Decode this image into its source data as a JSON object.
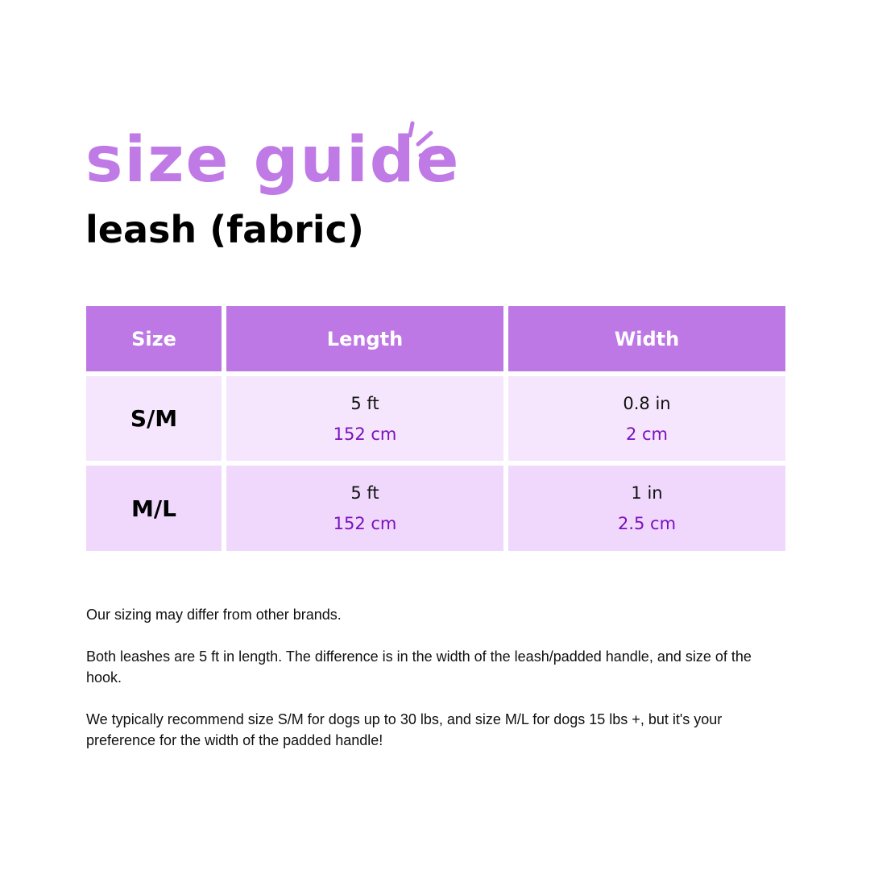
{
  "title": "size guide",
  "subtitle": "leash (fabric)",
  "colors": {
    "accent": "#BE78E5",
    "row1": "#F6E6FD",
    "row2": "#F0D8FC",
    "metric_text": "#7A10BE"
  },
  "table": {
    "headers": [
      "Size",
      "Length",
      "Width"
    ],
    "rows": [
      {
        "size": "S/M",
        "length_imperial": "5 ft",
        "length_metric": "152 cm",
        "width_imperial": "0.8 in",
        "width_metric": "2 cm"
      },
      {
        "size": "M/L",
        "length_imperial": "5 ft",
        "length_metric": "152 cm",
        "width_imperial": "1 in",
        "width_metric": "2.5 cm"
      }
    ]
  },
  "notes": [
    "Our sizing may differ from other brands.",
    "Both leashes are 5 ft in length. The difference is in the width of the leash/padded handle, and size of the hook.",
    "We typically recommend size S/M for dogs up to 30 lbs, and size M/L for dogs 15 lbs +, but it's your preference for the width of the padded handle!"
  ]
}
